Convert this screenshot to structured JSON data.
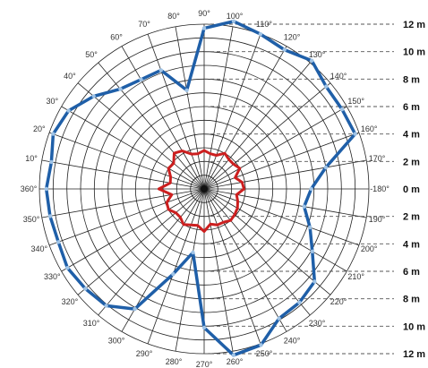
{
  "chart_data": {
    "type": "polar-line",
    "title": "",
    "angle_labels": [
      "360°",
      "10°",
      "20°",
      "30°",
      "40°",
      "50°",
      "60°",
      "70°",
      "80°",
      "90°",
      "100°",
      "110°",
      "120°",
      "130°",
      "140°",
      "150°",
      "160°",
      "170°",
      "-180°",
      "190°",
      "200°",
      "210°",
      "220°",
      "230°",
      "240°",
      "250°",
      "260°",
      "270°",
      "280°",
      "290°",
      "300°",
      "310°",
      "320°",
      "330°",
      "340°",
      "350°"
    ],
    "range_labels_upper": [
      "12 m",
      "10 m",
      "8 m",
      "6 m",
      "4 m",
      "2 m",
      "0 m"
    ],
    "range_labels_lower": [
      "2 m",
      "4 m",
      "6 m",
      "8 m",
      "10 m",
      "12 m"
    ],
    "r_max_m": 12,
    "ring_step_m": 1,
    "spoke_step_deg": 10,
    "series": [
      {
        "color": "#1f5fa8",
        "angles_deg": [
          0,
          10,
          20,
          30,
          40,
          50,
          60,
          70,
          80,
          90,
          100,
          110,
          120,
          130,
          140,
          150,
          160,
          170,
          180,
          190,
          200,
          210,
          220,
          230,
          240,
          250,
          260,
          270,
          280,
          290,
          300,
          310,
          320,
          330,
          340,
          350
        ],
        "values_m": [
          11.5,
          11.3,
          11.7,
          11.4,
          10.5,
          9.5,
          9.2,
          9.2,
          7.3,
          11.7,
          12.4,
          12.0,
          11.7,
          12.2,
          11.6,
          11.6,
          11.7,
          9.0,
          7.8,
          7.4,
          8.2,
          9.1,
          10.5,
          10.8,
          10.9,
          12.1,
          12.3,
          10.1,
          4.7,
          6.6,
          10.1,
          11.1,
          11.3,
          11.5,
          11.3,
          11.4
        ]
      },
      {
        "color": "#cc1f1f",
        "angles_deg": [
          0,
          10,
          20,
          30,
          40,
          50,
          60,
          70,
          80,
          90,
          100,
          110,
          120,
          130,
          140,
          150,
          160,
          170,
          180,
          190,
          200,
          210,
          220,
          230,
          240,
          250,
          260,
          270,
          280,
          290,
          300,
          310,
          320,
          330,
          340,
          350
        ],
        "values_m": [
          3.3,
          2.5,
          2.6,
          3.0,
          2.9,
          3.4,
          3.2,
          2.7,
          2.6,
          2.8,
          2.6,
          2.6,
          3.0,
          2.8,
          2.8,
          3.0,
          2.4,
          2.8,
          2.9,
          2.4,
          2.6,
          2.8,
          2.9,
          3.0,
          2.8,
          2.8,
          2.6,
          3.1,
          2.7,
          2.8,
          3.0,
          2.7,
          2.7,
          3.0,
          2.9,
          2.4
        ]
      }
    ],
    "colors": {
      "grid": "#222222",
      "dashed": "#555555",
      "marker": "#9fc3e6"
    }
  }
}
